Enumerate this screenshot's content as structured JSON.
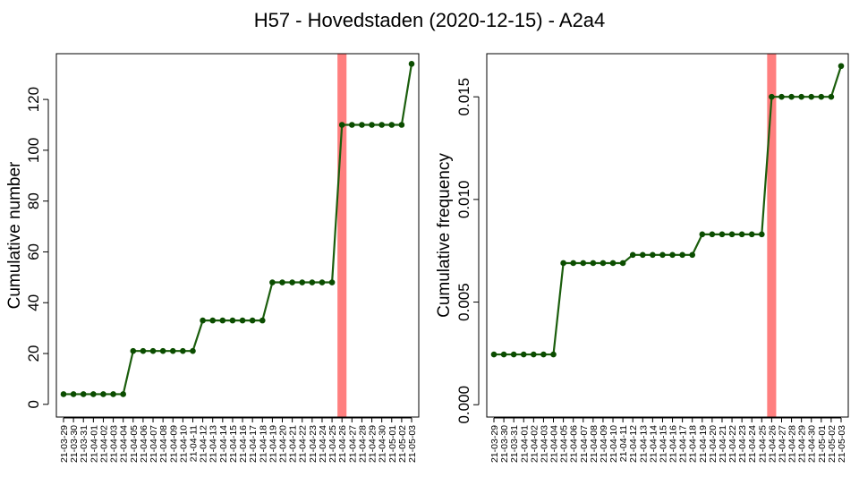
{
  "title": "H57 - Hovedstaden (2020-12-15) - A2a4",
  "colors": {
    "line": "#1b5e0d",
    "point": "#0b4d00",
    "highlight": "#ff7f7f"
  },
  "chart_data": [
    {
      "type": "line",
      "ylabel": "Cumulative number",
      "ylim": [
        -5,
        138
      ],
      "yticks": [
        "0",
        "20",
        "40",
        "60",
        "80",
        "100",
        "120"
      ],
      "highlight_category": "21-04-26",
      "categories": [
        "21-03-29",
        "21-03-30",
        "21-03-31",
        "21-04-01",
        "21-04-02",
        "21-04-03",
        "21-04-04",
        "21-04-05",
        "21-04-06",
        "21-04-07",
        "21-04-08",
        "21-04-09",
        "21-04-10",
        "21-04-11",
        "21-04-12",
        "21-04-13",
        "21-04-14",
        "21-04-15",
        "21-04-16",
        "21-04-17",
        "21-04-18",
        "21-04-19",
        "21-04-20",
        "21-04-21",
        "21-04-22",
        "21-04-23",
        "21-04-24",
        "21-04-25",
        "21-04-26",
        "21-04-27",
        "21-04-28",
        "21-04-29",
        "21-04-30",
        "21-05-01",
        "21-05-02",
        "21-05-03"
      ],
      "values": [
        4,
        4,
        4,
        4,
        4,
        4,
        4,
        21,
        21,
        21,
        21,
        21,
        21,
        21,
        33,
        33,
        33,
        33,
        33,
        33,
        33,
        48,
        48,
        48,
        48,
        48,
        48,
        48,
        110,
        110,
        110,
        110,
        110,
        110,
        110,
        134
      ]
    },
    {
      "type": "line",
      "ylabel": "Cumulative frequency",
      "ylim": [
        -0.0006,
        0.0171
      ],
      "yticks": [
        "0.000",
        "0.005",
        "0.010",
        "0.015"
      ],
      "highlight_category": "21-04-26",
      "categories": [
        "21-03-29",
        "21-03-30",
        "21-03-31",
        "21-04-01",
        "21-04-02",
        "21-04-03",
        "21-04-04",
        "21-04-05",
        "21-04-06",
        "21-04-07",
        "21-04-08",
        "21-04-09",
        "21-04-10",
        "21-04-11",
        "21-04-12",
        "21-04-13",
        "21-04-14",
        "21-04-15",
        "21-04-16",
        "21-04-17",
        "21-04-18",
        "21-04-19",
        "21-04-20",
        "21-04-21",
        "21-04-22",
        "21-04-23",
        "21-04-24",
        "21-04-25",
        "21-04-26",
        "21-04-27",
        "21-04-28",
        "21-04-29",
        "21-04-30",
        "21-05-01",
        "21-05-02",
        "21-05-03"
      ],
      "values": [
        0.00245,
        0.00245,
        0.00245,
        0.00245,
        0.00245,
        0.00245,
        0.00245,
        0.0069,
        0.0069,
        0.0069,
        0.0069,
        0.0069,
        0.0069,
        0.0069,
        0.0073,
        0.0073,
        0.0073,
        0.0073,
        0.0073,
        0.0073,
        0.0073,
        0.0083,
        0.0083,
        0.0083,
        0.0083,
        0.0083,
        0.0083,
        0.0083,
        0.015,
        0.015,
        0.015,
        0.015,
        0.015,
        0.015,
        0.015,
        0.0165
      ]
    }
  ]
}
